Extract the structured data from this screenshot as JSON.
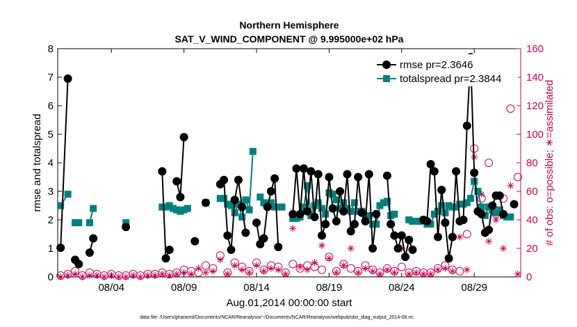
{
  "chart_data": {
    "type": "line",
    "title": "Northern Hemisphere",
    "subtitle": "SAT_V_WIND_COMPONENT @ 9.995000e+02 hPa",
    "xlabel": "Aug.01,2014 00:00:00 start",
    "ylabel_left": "rmse and totalspread",
    "ylabel_right": "# of obs: o=possible; ∗=assimilated",
    "footnote": "data file: /Users/gharamti/Documents/NCAR/Reanalysis/~/Documents/NCAR/Reanalysis/webpub/obs_diag_output_2014-08.nc",
    "xlim": [
      0.3,
      32.2
    ],
    "ylim_left": [
      0,
      8
    ],
    "ylim_right": [
      0,
      160
    ],
    "x_tick_values": [
      4,
      9,
      14,
      19,
      24,
      29
    ],
    "x_tick_labels": [
      "08/04",
      "08/09",
      "08/14",
      "08/19",
      "08/24",
      "08/29"
    ],
    "y_left_ticks": [
      0,
      1,
      2,
      3,
      4,
      5,
      6,
      7,
      8
    ],
    "y_right_ticks": [
      0,
      20,
      40,
      60,
      80,
      100,
      120,
      140,
      160
    ],
    "colors": {
      "rmse": "#000000",
      "totalspread": "#008080",
      "obs": "#cc0052",
      "axis": "#000000"
    },
    "legend": {
      "position": "top-right",
      "entries": [
        "rmse pr=2.3646",
        "totalspread pr=2.3844"
      ]
    },
    "series": [
      {
        "name": "rmse",
        "axis": "left",
        "points": [
          [
            0.5,
            1.02
          ],
          [
            1,
            6.95
          ],
          null,
          [
            1.5,
            0.6
          ],
          [
            1.75,
            0.45
          ],
          null,
          [
            2.5,
            0.85
          ],
          [
            2.75,
            1.35
          ],
          null,
          [
            5,
            1.75
          ],
          null,
          [
            7.5,
            3.7
          ],
          [
            7.75,
            0.65
          ],
          [
            8,
            0.95
          ],
          null,
          [
            8.5,
            3.35
          ],
          [
            8.75,
            2.8
          ],
          [
            9,
            4.9
          ],
          null,
          [
            9.75,
            1.25
          ],
          null,
          [
            10.5,
            2.6
          ],
          null,
          [
            11.5,
            3.25
          ],
          [
            11.75,
            3.4
          ],
          [
            12,
            1.45
          ],
          [
            12.25,
            0.95
          ],
          [
            12.5,
            2.7
          ],
          [
            12.75,
            3.4
          ],
          [
            13,
            2.45
          ],
          [
            13.25,
            1.55
          ],
          null,
          [
            14,
            1.9
          ],
          [
            14.25,
            1.15
          ],
          [
            14.5,
            1.35
          ],
          [
            14.75,
            2.45
          ],
          [
            15,
            3.0
          ],
          [
            15.25,
            3.45
          ],
          [
            15.5,
            1.05
          ],
          null,
          [
            16.5,
            2.2
          ],
          [
            16.75,
            3.8
          ],
          [
            17,
            2.2
          ],
          [
            17.25,
            3.8
          ],
          [
            17.5,
            2.3
          ],
          [
            17.75,
            3.7
          ],
          [
            18,
            2.1
          ],
          [
            18.25,
            3.6
          ],
          [
            18.5,
            1.45
          ],
          [
            18.75,
            1.85
          ],
          [
            19,
            3.5
          ],
          [
            19.25,
            2.4
          ],
          [
            19.5,
            1.95
          ],
          [
            19.75,
            3.0
          ],
          [
            20,
            2.3
          ],
          [
            20.25,
            3.6
          ],
          [
            20.5,
            1.6
          ],
          [
            20.75,
            1.85
          ],
          [
            21,
            3.5
          ],
          [
            21.25,
            2.25
          ],
          [
            21.5,
            1.95
          ],
          [
            21.75,
            3.6
          ],
          [
            22,
            1.0
          ],
          [
            22.25,
            2.2
          ],
          null,
          [
            23,
            3.55
          ],
          [
            23.25,
            1.85
          ],
          [
            23.5,
            1.45
          ],
          [
            23.75,
            1.0
          ],
          [
            24,
            1.45
          ],
          [
            24.25,
            0.7
          ],
          [
            24.5,
            1.3
          ],
          [
            24.75,
            0.95
          ],
          null,
          [
            25.5,
            2.0
          ],
          [
            25.75,
            1.95
          ],
          [
            26,
            3.95
          ],
          [
            26.25,
            3.7
          ],
          [
            26.5,
            1.4
          ],
          [
            26.75,
            3.05
          ],
          [
            27,
            1.9
          ],
          [
            27.25,
            0.65
          ],
          [
            27.5,
            1.4
          ],
          [
            27.75,
            3.7
          ],
          [
            28,
            1.95
          ],
          [
            28.25,
            2.0
          ],
          [
            28.5,
            5.3
          ],
          [
            28.75,
            7.7
          ],
          [
            29,
            3.65
          ],
          [
            29.25,
            2.3
          ],
          [
            29.5,
            2.2
          ],
          [
            29.75,
            1.55
          ],
          [
            30,
            1.65
          ],
          [
            30.25,
            2.5
          ],
          [
            30.5,
            2.85
          ],
          [
            30.75,
            2.85
          ],
          [
            31,
            2.2
          ],
          null,
          [
            31.75,
            2.55
          ]
        ]
      },
      {
        "name": "totalspread",
        "axis": "left",
        "points": [
          [
            0.5,
            2.5
          ],
          [
            1,
            2.9
          ],
          null,
          [
            1.5,
            1.9
          ],
          [
            1.75,
            1.9
          ],
          null,
          [
            2.5,
            1.9
          ],
          [
            2.75,
            2.4
          ],
          null,
          [
            5,
            1.9
          ],
          null,
          [
            7.5,
            2.45
          ],
          [
            7.75,
            2.45
          ],
          [
            8,
            2.5
          ],
          [
            8.25,
            2.4
          ],
          [
            8.5,
            2.35
          ],
          [
            8.75,
            2.3
          ],
          [
            9,
            2.35
          ],
          [
            9.25,
            2.4
          ],
          null,
          [
            10.5,
            2.6
          ],
          null,
          [
            11.5,
            2.75
          ],
          [
            11.75,
            2.75
          ],
          [
            12,
            2.55
          ],
          [
            12.25,
            2.5
          ],
          [
            12.5,
            2.25
          ],
          [
            12.75,
            2.55
          ],
          [
            13,
            2.1
          ],
          [
            13.25,
            2.7
          ],
          [
            13.5,
            2.35
          ],
          [
            13.75,
            4.4
          ],
          null,
          [
            14.25,
            2.8
          ],
          [
            14.5,
            2.6
          ],
          [
            14.75,
            2.55
          ],
          [
            15,
            2.6
          ],
          [
            15.25,
            2.45
          ],
          [
            15.5,
            2.45
          ],
          [
            15.75,
            2.45
          ],
          null,
          [
            16.5,
            2.05
          ],
          [
            16.75,
            2.05
          ],
          [
            17,
            2.1
          ],
          [
            17.25,
            2.45
          ],
          [
            17.5,
            3.2
          ],
          [
            17.75,
            2.15
          ],
          [
            18,
            2.5
          ],
          [
            18.25,
            2.6
          ],
          [
            18.5,
            2.4
          ],
          [
            18.75,
            2.2
          ],
          [
            19,
            2.95
          ],
          [
            19.25,
            2.9
          ],
          [
            19.5,
            2.7
          ],
          [
            19.75,
            2.4
          ],
          [
            20,
            2.6
          ],
          [
            20.25,
            2.4
          ],
          [
            20.5,
            2.3
          ],
          [
            20.75,
            2.6
          ],
          [
            21,
            2.3
          ],
          [
            21.25,
            2.3
          ],
          [
            21.5,
            2.1
          ],
          [
            21.75,
            2.15
          ],
          [
            22,
            1.85
          ],
          [
            22.25,
            1.85
          ],
          [
            22.5,
            2.5
          ],
          [
            22.75,
            2.6
          ],
          [
            23,
            2.65
          ],
          [
            23.25,
            2.15
          ],
          [
            23.5,
            2.2
          ],
          null,
          [
            24.5,
            2.0
          ],
          [
            24.75,
            1.95
          ],
          [
            25,
            1.95
          ],
          [
            25.25,
            1.95
          ],
          [
            25.5,
            2.0
          ],
          [
            25.75,
            1.85
          ],
          [
            26,
            1.85
          ],
          [
            26.25,
            2.2
          ],
          [
            26.5,
            2.3
          ],
          [
            26.75,
            2.5
          ],
          [
            27,
            2.25
          ],
          [
            27.25,
            2.5
          ],
          [
            27.5,
            2.45
          ],
          [
            27.75,
            2.45
          ],
          [
            28,
            2.55
          ],
          [
            28.25,
            2.55
          ],
          [
            28.5,
            2.6
          ],
          [
            28.75,
            2.75
          ],
          [
            29,
            3.35
          ],
          [
            29.25,
            3.0
          ],
          [
            29.5,
            2.45
          ],
          [
            29.75,
            2.15
          ],
          [
            30,
            2.45
          ],
          [
            30.25,
            2.35
          ],
          [
            30.5,
            2.25
          ],
          [
            30.75,
            2.35
          ],
          [
            31,
            2.15
          ],
          [
            31.25,
            2.1
          ],
          [
            31.5,
            2.1
          ]
        ]
      },
      {
        "name": "obs_possible",
        "axis": "right",
        "marker": "circle",
        "points": [
          [
            0.5,
            1
          ],
          [
            1,
            2
          ],
          [
            1.5,
            4
          ],
          [
            2,
            1
          ],
          [
            2.5,
            3
          ],
          [
            3,
            2
          ],
          [
            3.5,
            1
          ],
          [
            4,
            2
          ],
          [
            4.5,
            1
          ],
          [
            5,
            1
          ],
          [
            5.5,
            2
          ],
          [
            6,
            1
          ],
          [
            6.5,
            2
          ],
          [
            7,
            2
          ],
          [
            7.5,
            3
          ],
          [
            8,
            2
          ],
          [
            8.5,
            3
          ],
          [
            9,
            5
          ],
          [
            9.5,
            4
          ],
          [
            10,
            3
          ],
          [
            10.5,
            8
          ],
          [
            11,
            6
          ],
          [
            11.5,
            15
          ],
          [
            12,
            3
          ],
          [
            12.5,
            10
          ],
          [
            13,
            7
          ],
          [
            13.5,
            4
          ],
          [
            14,
            10
          ],
          [
            14.5,
            5
          ],
          [
            15,
            8
          ],
          [
            15.5,
            7
          ],
          [
            16,
            3
          ],
          [
            16.5,
            9
          ],
          [
            17,
            6
          ],
          [
            17.5,
            8
          ],
          [
            18,
            7
          ],
          [
            18.5,
            5
          ],
          [
            19,
            14
          ],
          [
            19.5,
            4
          ],
          [
            20,
            9
          ],
          [
            20.5,
            6
          ],
          [
            21,
            4
          ],
          [
            21.5,
            8
          ],
          [
            22,
            5
          ],
          [
            22.5,
            3
          ],
          [
            23,
            6
          ],
          [
            23.5,
            4
          ],
          [
            24,
            7
          ],
          [
            24.5,
            3
          ],
          [
            25,
            4
          ],
          [
            25.5,
            3
          ],
          [
            26,
            3
          ],
          [
            26.5,
            6
          ],
          [
            27,
            8
          ],
          [
            27.5,
            5
          ],
          [
            28,
            4
          ],
          [
            28.5,
            30
          ],
          [
            29,
            90
          ],
          [
            29.5,
            55
          ],
          [
            30,
            80
          ],
          [
            30.5,
            44
          ],
          [
            31,
            55
          ],
          [
            31.5,
            118
          ],
          [
            32,
            70
          ]
        ]
      },
      {
        "name": "obs_assimilated",
        "axis": "right",
        "marker": "star",
        "points": [
          [
            0.5,
            0
          ],
          [
            1,
            1
          ],
          [
            1.5,
            2
          ],
          [
            2,
            0
          ],
          [
            2.5,
            1
          ],
          [
            3,
            1
          ],
          [
            3.5,
            0
          ],
          [
            4,
            1
          ],
          [
            4.5,
            0
          ],
          [
            5,
            0
          ],
          [
            5.5,
            1
          ],
          [
            6,
            0
          ],
          [
            6.5,
            1
          ],
          [
            7,
            1
          ],
          [
            7.5,
            2
          ],
          [
            8,
            1
          ],
          [
            8.5,
            2
          ],
          [
            9,
            3
          ],
          [
            9.5,
            2
          ],
          [
            10,
            6
          ],
          [
            10.5,
            3
          ],
          [
            11,
            4
          ],
          [
            11.5,
            12
          ],
          [
            12,
            2
          ],
          [
            12.5,
            8
          ],
          [
            13,
            5
          ],
          [
            13.5,
            3
          ],
          [
            14,
            8
          ],
          [
            14.5,
            4
          ],
          [
            15,
            6
          ],
          [
            15.5,
            5
          ],
          [
            16,
            2
          ],
          [
            16.5,
            34
          ],
          [
            17,
            7
          ],
          [
            17.5,
            5
          ],
          [
            18,
            10
          ],
          [
            18.5,
            22
          ],
          [
            19,
            13
          ],
          [
            19.5,
            3
          ],
          [
            20,
            8
          ],
          [
            20.5,
            20
          ],
          [
            21,
            3
          ],
          [
            21.5,
            6
          ],
          [
            22,
            4
          ],
          [
            22.5,
            2
          ],
          [
            23,
            5
          ],
          [
            23.5,
            3
          ],
          [
            24,
            20
          ],
          [
            24.5,
            2
          ],
          [
            25,
            3
          ],
          [
            25.5,
            2
          ],
          [
            26,
            2
          ],
          [
            26.5,
            5
          ],
          [
            27,
            6
          ],
          [
            27.5,
            4
          ],
          [
            28,
            28
          ],
          [
            28.5,
            5
          ],
          [
            29,
            84
          ],
          [
            29.5,
            58
          ],
          [
            30,
            25
          ],
          [
            30.5,
            40
          ],
          [
            31,
            20
          ],
          [
            31.5,
            64
          ],
          [
            32,
            2
          ]
        ]
      }
    ]
  }
}
